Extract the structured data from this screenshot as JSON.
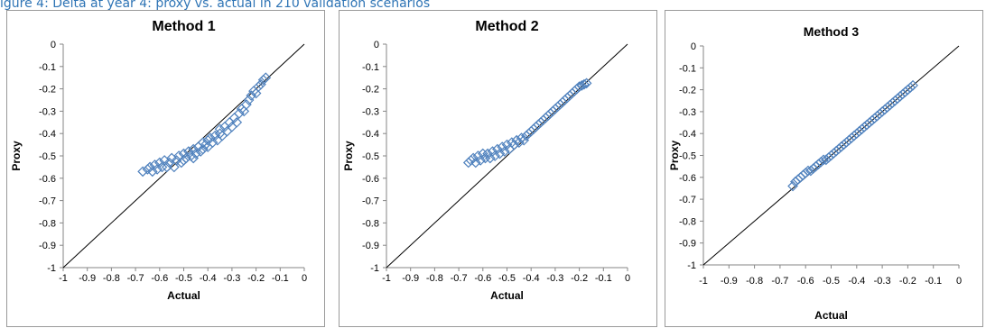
{
  "caption": "igure 4: Delta at year 4: proxy vs. actual in 210 validation scenarios",
  "colors": {
    "marker": "#4f81bd",
    "diagonal": "#000000",
    "caption": "#2e74b5"
  },
  "chart_data": [
    {
      "type": "scatter",
      "title": "Method 1",
      "xlabel": "Actual",
      "ylabel": "Proxy",
      "xlim": [
        -1,
        0
      ],
      "ylim": [
        -1,
        0
      ],
      "xticks": [
        "-1",
        "-0.9",
        "-0.8",
        "-0.7",
        "-0.6",
        "-0.5",
        "-0.4",
        "-0.3",
        "-0.2",
        "-0.1",
        "0"
      ],
      "yticks": [
        "0",
        "-0.1",
        "-0.2",
        "-0.3",
        "-0.4",
        "-0.5",
        "-0.6",
        "-0.7",
        "-0.8",
        "-0.9",
        "-1"
      ],
      "grid": false,
      "legend": "none",
      "marker": "diamond-open",
      "reference_line": {
        "from": [
          -1,
          -1
        ],
        "to": [
          0,
          0
        ]
      },
      "points": [
        [
          -0.67,
          -0.57
        ],
        [
          -0.65,
          -0.56
        ],
        [
          -0.64,
          -0.55
        ],
        [
          -0.63,
          -0.57
        ],
        [
          -0.62,
          -0.54
        ],
        [
          -0.61,
          -0.56
        ],
        [
          -0.6,
          -0.53
        ],
        [
          -0.59,
          -0.55
        ],
        [
          -0.58,
          -0.52
        ],
        [
          -0.57,
          -0.55
        ],
        [
          -0.56,
          -0.53
        ],
        [
          -0.55,
          -0.51
        ],
        [
          -0.54,
          -0.55
        ],
        [
          -0.53,
          -0.52
        ],
        [
          -0.52,
          -0.5
        ],
        [
          -0.51,
          -0.53
        ],
        [
          -0.5,
          -0.49
        ],
        [
          -0.5,
          -0.52
        ],
        [
          -0.49,
          -0.51
        ],
        [
          -0.48,
          -0.48
        ],
        [
          -0.47,
          -0.5
        ],
        [
          -0.46,
          -0.47
        ],
        [
          -0.46,
          -0.51
        ],
        [
          -0.45,
          -0.49
        ],
        [
          -0.44,
          -0.46
        ],
        [
          -0.43,
          -0.48
        ],
        [
          -0.42,
          -0.44
        ],
        [
          -0.42,
          -0.47
        ],
        [
          -0.41,
          -0.45
        ],
        [
          -0.4,
          -0.43
        ],
        [
          -0.4,
          -0.46
        ],
        [
          -0.39,
          -0.42
        ],
        [
          -0.38,
          -0.44
        ],
        [
          -0.37,
          -0.41
        ],
        [
          -0.36,
          -0.43
        ],
        [
          -0.35,
          -0.4
        ],
        [
          -0.35,
          -0.38
        ],
        [
          -0.34,
          -0.41
        ],
        [
          -0.33,
          -0.37
        ],
        [
          -0.32,
          -0.39
        ],
        [
          -0.31,
          -0.35
        ],
        [
          -0.3,
          -0.37
        ],
        [
          -0.29,
          -0.33
        ],
        [
          -0.28,
          -0.35
        ],
        [
          -0.27,
          -0.31
        ],
        [
          -0.26,
          -0.29
        ],
        [
          -0.25,
          -0.3
        ],
        [
          -0.24,
          -0.27
        ],
        [
          -0.23,
          -0.25
        ],
        [
          -0.22,
          -0.23
        ],
        [
          -0.21,
          -0.21
        ],
        [
          -0.2,
          -0.22
        ],
        [
          -0.19,
          -0.19
        ],
        [
          -0.18,
          -0.18
        ],
        [
          -0.17,
          -0.16
        ],
        [
          -0.16,
          -0.15
        ]
      ]
    },
    {
      "type": "scatter",
      "title": "Method 2",
      "xlabel": "Actual",
      "ylabel": "Proxy",
      "xlim": [
        -1,
        0
      ],
      "ylim": [
        -1,
        0
      ],
      "xticks": [
        "-1",
        "-0.9",
        "-0.8",
        "-0.7",
        "-0.6",
        "-0.5",
        "-0.4",
        "-0.3",
        "-0.2",
        "-0.1",
        "0"
      ],
      "yticks": [
        "0",
        "-0.1",
        "-0.2",
        "-0.3",
        "-0.4",
        "-0.5",
        "-0.6",
        "-0.7",
        "-0.8",
        "-0.9",
        "-1"
      ],
      "grid": false,
      "legend": "none",
      "marker": "diamond-open",
      "reference_line": {
        "from": [
          -1,
          -1
        ],
        "to": [
          0,
          0
        ]
      },
      "points": [
        [
          -0.66,
          -0.53
        ],
        [
          -0.65,
          -0.52
        ],
        [
          -0.64,
          -0.51
        ],
        [
          -0.63,
          -0.53
        ],
        [
          -0.62,
          -0.5
        ],
        [
          -0.61,
          -0.52
        ],
        [
          -0.6,
          -0.49
        ],
        [
          -0.59,
          -0.51
        ],
        [
          -0.58,
          -0.49
        ],
        [
          -0.57,
          -0.51
        ],
        [
          -0.56,
          -0.48
        ],
        [
          -0.55,
          -0.5
        ],
        [
          -0.54,
          -0.47
        ],
        [
          -0.53,
          -0.49
        ],
        [
          -0.52,
          -0.46
        ],
        [
          -0.51,
          -0.48
        ],
        [
          -0.5,
          -0.45
        ],
        [
          -0.49,
          -0.47
        ],
        [
          -0.48,
          -0.44
        ],
        [
          -0.47,
          -0.45
        ],
        [
          -0.46,
          -0.43
        ],
        [
          -0.45,
          -0.44
        ],
        [
          -0.44,
          -0.42
        ],
        [
          -0.43,
          -0.43
        ],
        [
          -0.42,
          -0.41
        ],
        [
          -0.41,
          -0.4
        ],
        [
          -0.4,
          -0.39
        ],
        [
          -0.39,
          -0.38
        ],
        [
          -0.38,
          -0.37
        ],
        [
          -0.37,
          -0.36
        ],
        [
          -0.36,
          -0.35
        ],
        [
          -0.35,
          -0.34
        ],
        [
          -0.34,
          -0.33
        ],
        [
          -0.33,
          -0.32
        ],
        [
          -0.32,
          -0.31
        ],
        [
          -0.31,
          -0.3
        ],
        [
          -0.3,
          -0.29
        ],
        [
          -0.29,
          -0.28
        ],
        [
          -0.28,
          -0.27
        ],
        [
          -0.27,
          -0.26
        ],
        [
          -0.26,
          -0.25
        ],
        [
          -0.25,
          -0.24
        ],
        [
          -0.24,
          -0.23
        ],
        [
          -0.23,
          -0.22
        ],
        [
          -0.22,
          -0.21
        ],
        [
          -0.21,
          -0.2
        ],
        [
          -0.2,
          -0.19
        ],
        [
          -0.19,
          -0.185
        ],
        [
          -0.18,
          -0.18
        ],
        [
          -0.17,
          -0.175
        ]
      ]
    },
    {
      "type": "scatter",
      "title": "Method 3",
      "xlabel": "Actual",
      "ylabel": "Proxy",
      "xlim": [
        -1,
        0
      ],
      "ylim": [
        -1,
        0
      ],
      "xticks": [
        "-1",
        "-0.9",
        "-0.8",
        "-0.7",
        "-0.6",
        "-0.5",
        "-0.4",
        "-0.3",
        "-0.2",
        "-0.1",
        "0"
      ],
      "yticks": [
        "0",
        "-0.1",
        "-0.2",
        "-0.3",
        "-0.4",
        "-0.5",
        "-0.6",
        "-0.7",
        "-0.8",
        "-0.9",
        "-1"
      ],
      "grid": false,
      "legend": "none",
      "marker": "diamond-open",
      "reference_line": {
        "from": [
          -1,
          -1
        ],
        "to": [
          0,
          0
        ]
      },
      "points": [
        [
          -0.65,
          -0.64
        ],
        [
          -0.64,
          -0.62
        ],
        [
          -0.63,
          -0.61
        ],
        [
          -0.62,
          -0.6
        ],
        [
          -0.61,
          -0.59
        ],
        [
          -0.6,
          -0.58
        ],
        [
          -0.59,
          -0.57
        ],
        [
          -0.58,
          -0.57
        ],
        [
          -0.57,
          -0.56
        ],
        [
          -0.56,
          -0.55
        ],
        [
          -0.55,
          -0.54
        ],
        [
          -0.54,
          -0.53
        ],
        [
          -0.53,
          -0.52
        ],
        [
          -0.52,
          -0.52
        ],
        [
          -0.51,
          -0.51
        ],
        [
          -0.5,
          -0.5
        ],
        [
          -0.49,
          -0.49
        ],
        [
          -0.48,
          -0.48
        ],
        [
          -0.47,
          -0.47
        ],
        [
          -0.46,
          -0.46
        ],
        [
          -0.45,
          -0.45
        ],
        [
          -0.44,
          -0.44
        ],
        [
          -0.43,
          -0.43
        ],
        [
          -0.42,
          -0.42
        ],
        [
          -0.41,
          -0.41
        ],
        [
          -0.4,
          -0.4
        ],
        [
          -0.39,
          -0.39
        ],
        [
          -0.38,
          -0.38
        ],
        [
          -0.37,
          -0.37
        ],
        [
          -0.36,
          -0.36
        ],
        [
          -0.35,
          -0.35
        ],
        [
          -0.34,
          -0.34
        ],
        [
          -0.33,
          -0.33
        ],
        [
          -0.32,
          -0.32
        ],
        [
          -0.31,
          -0.31
        ],
        [
          -0.3,
          -0.3
        ],
        [
          -0.29,
          -0.29
        ],
        [
          -0.28,
          -0.28
        ],
        [
          -0.27,
          -0.27
        ],
        [
          -0.26,
          -0.26
        ],
        [
          -0.25,
          -0.25
        ],
        [
          -0.24,
          -0.24
        ],
        [
          -0.23,
          -0.23
        ],
        [
          -0.22,
          -0.22
        ],
        [
          -0.21,
          -0.21
        ],
        [
          -0.2,
          -0.2
        ],
        [
          -0.19,
          -0.19
        ],
        [
          -0.18,
          -0.18
        ]
      ]
    }
  ]
}
